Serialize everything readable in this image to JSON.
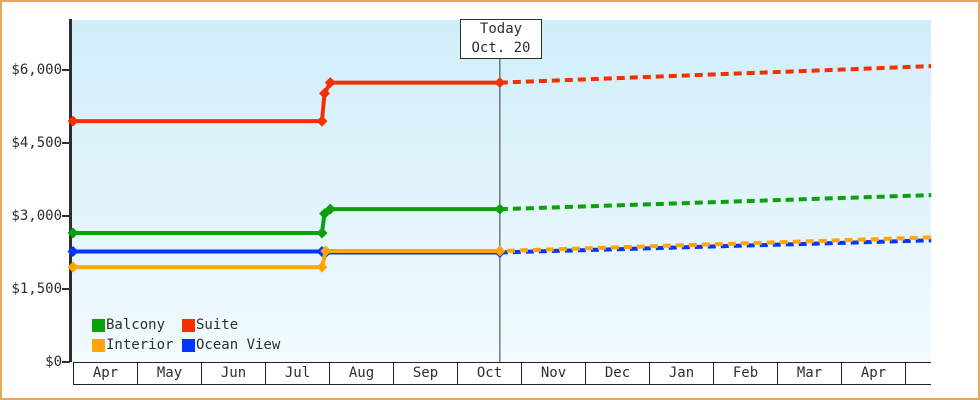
{
  "widget": {
    "border_color": "#eaa65a",
    "background": "#ffffff",
    "axis_color": "#2e2e2e",
    "text_color": "#2e2e2e"
  },
  "today_box": {
    "title": "Today",
    "date": "Oct. 20"
  },
  "legend": {
    "items": [
      {
        "label": "Balcony",
        "color": "#0ba10b"
      },
      {
        "label": "Suite",
        "color": "#f43000"
      },
      {
        "label": "Interior",
        "color": "#ffa505"
      },
      {
        "label": "Ocean View",
        "color": "#0435ff"
      }
    ]
  },
  "chart_data": {
    "type": "line",
    "title": "",
    "x_categories": [
      "Apr",
      "May",
      "Jun",
      "Jul",
      "Aug",
      "Sep",
      "Oct",
      "Nov",
      "Dec",
      "Jan",
      "Feb",
      "Mar",
      "Apr"
    ],
    "y_axis": {
      "unit": "USD",
      "ylim": [
        0,
        7000
      ],
      "ticks": [
        {
          "label": "$0",
          "value": 0
        },
        {
          "label": "$1,500",
          "value": 1500
        },
        {
          "label": "$3,000",
          "value": 3000
        },
        {
          "label": "$4,500",
          "value": 4500
        },
        {
          "label": "$6,000",
          "value": 6000
        }
      ]
    },
    "today": {
      "title": "Today",
      "date": "Oct. 20",
      "x_months": 6.67
    },
    "plot_background": {
      "top": "#cfeef9",
      "middle": "#e3f4fb",
      "bottom": "#f2fbfe"
    },
    "grid": false,
    "legend_position": "bottom-left-inside",
    "forecast_style": "dotted-after-today",
    "series": [
      {
        "name": "Ocean View",
        "color": "#0435ff",
        "solid": [
          [
            0,
            2270
          ],
          [
            3.89,
            2270
          ],
          [
            3.95,
            2250
          ],
          [
            6.67,
            2250
          ]
        ],
        "dotted": [
          [
            6.67,
            2250
          ],
          [
            13.41,
            2500
          ]
        ],
        "markers": [
          [
            0,
            2270
          ],
          [
            3.89,
            2270
          ],
          [
            3.95,
            2250
          ],
          [
            6.67,
            2250
          ]
        ]
      },
      {
        "name": "Interior",
        "color": "#ffa505",
        "solid": [
          [
            0,
            1950
          ],
          [
            3.89,
            1950
          ],
          [
            3.95,
            2280
          ],
          [
            6.67,
            2280
          ]
        ],
        "dotted": [
          [
            6.67,
            2280
          ],
          [
            13.41,
            2560
          ]
        ],
        "markers": [
          [
            0,
            1950
          ],
          [
            3.89,
            1950
          ],
          [
            3.95,
            2280
          ],
          [
            6.67,
            2280
          ]
        ]
      },
      {
        "name": "Balcony",
        "color": "#0ba10b",
        "solid": [
          [
            0,
            2650
          ],
          [
            3.89,
            2650
          ],
          [
            3.93,
            3050
          ],
          [
            4.02,
            3140
          ],
          [
            6.67,
            3140
          ]
        ],
        "dotted": [
          [
            6.67,
            3140
          ],
          [
            13.41,
            3430
          ]
        ],
        "markers": [
          [
            0,
            2650
          ],
          [
            3.89,
            2650
          ],
          [
            3.93,
            3050
          ],
          [
            4.02,
            3140
          ],
          [
            6.67,
            3140
          ]
        ]
      },
      {
        "name": "Suite",
        "color": "#f43000",
        "solid": [
          [
            0,
            4950
          ],
          [
            3.89,
            4950
          ],
          [
            3.93,
            5520
          ],
          [
            4.02,
            5740
          ],
          [
            6.67,
            5740
          ]
        ],
        "dotted": [
          [
            6.67,
            5740
          ],
          [
            13.41,
            6080
          ]
        ],
        "markers": [
          [
            0,
            4950
          ],
          [
            3.89,
            4950
          ],
          [
            3.93,
            5520
          ],
          [
            4.02,
            5740
          ],
          [
            6.67,
            5740
          ]
        ]
      }
    ]
  }
}
